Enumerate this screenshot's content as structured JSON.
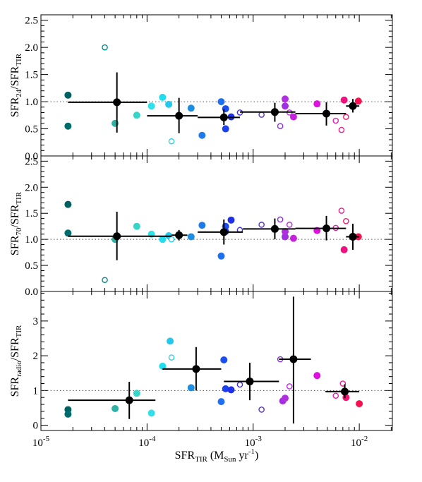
{
  "chart_data": [
    {
      "type": "scatter",
      "panel": "top",
      "ylabel": {
        "main": "SFR",
        "sub1": "24",
        "mid": "/SFR",
        "sub2": "TIR"
      },
      "ylim": [
        0,
        2.6
      ],
      "yticks": [
        "0.0",
        "0.5",
        "1.0",
        "1.5",
        "2.0",
        "2.5"
      ],
      "yticks_values": [
        0,
        0.5,
        1.0,
        1.5,
        2.0,
        2.5
      ],
      "reference_line": 1.0,
      "points": [
        {
          "x": 1.8e-05,
          "y": 1.12,
          "color": "#005f5f",
          "filled": true
        },
        {
          "x": 1.8e-05,
          "y": 0.55,
          "color": "#006b6b",
          "filled": true
        },
        {
          "x": 4e-05,
          "y": 2.0,
          "color": "#008b8b",
          "filled": false
        },
        {
          "x": 5e-05,
          "y": 0.6,
          "color": "#2bb3a8",
          "filled": true
        },
        {
          "x": 8e-05,
          "y": 0.75,
          "color": "#33d6c8",
          "filled": true
        },
        {
          "x": 0.00011,
          "y": 0.92,
          "color": "#33e0e8",
          "filled": true
        },
        {
          "x": 0.00014,
          "y": 1.08,
          "color": "#22ddee",
          "filled": true
        },
        {
          "x": 0.00016,
          "y": 0.95,
          "color": "#22c8ee",
          "filled": true
        },
        {
          "x": 0.00017,
          "y": 0.27,
          "color": "#33ccee",
          "filled": false
        },
        {
          "x": 0.00026,
          "y": 0.88,
          "color": "#1e8fe0",
          "filled": true
        },
        {
          "x": 0.00033,
          "y": 0.38,
          "color": "#1e7ae8",
          "filled": true
        },
        {
          "x": 0.0005,
          "y": 1.0,
          "color": "#1e70f0",
          "filled": true
        },
        {
          "x": 0.00055,
          "y": 0.87,
          "color": "#1a4ef0",
          "filled": true
        },
        {
          "x": 0.00055,
          "y": 0.5,
          "color": "#1a40f0",
          "filled": true
        },
        {
          "x": 0.00062,
          "y": 0.72,
          "color": "#2030e8",
          "filled": true
        },
        {
          "x": 0.00075,
          "y": 0.8,
          "color": "#4030d8",
          "filled": false
        },
        {
          "x": 0.0012,
          "y": 0.76,
          "color": "#5a30d8",
          "filled": false
        },
        {
          "x": 0.0018,
          "y": 0.55,
          "color": "#8a30e0",
          "filled": false
        },
        {
          "x": 0.002,
          "y": 0.92,
          "color": "#a030e0",
          "filled": true
        },
        {
          "x": 0.002,
          "y": 1.05,
          "color": "#b030e0",
          "filled": true
        },
        {
          "x": 0.0022,
          "y": 0.8,
          "color": "#c030e0",
          "filled": false
        },
        {
          "x": 0.0024,
          "y": 0.72,
          "color": "#c820e0",
          "filled": true
        },
        {
          "x": 0.004,
          "y": 0.96,
          "color": "#e010e0",
          "filled": true
        },
        {
          "x": 0.006,
          "y": 0.65,
          "color": "#e020b0",
          "filled": false
        },
        {
          "x": 0.0068,
          "y": 0.48,
          "color": "#e82090",
          "filled": false
        },
        {
          "x": 0.0072,
          "y": 1.03,
          "color": "#f01080",
          "filled": true
        },
        {
          "x": 0.0075,
          "y": 0.72,
          "color": "#f01870",
          "filled": false
        },
        {
          "x": 0.0098,
          "y": 1.01,
          "color": "#f81050",
          "filled": true
        }
      ],
      "binned": [
        {
          "x": 5.2e-05,
          "y": 0.99,
          "xlo": 1.8e-05,
          "xhi": 0.0001,
          "ylo": 0.43,
          "yhi": 1.54
        },
        {
          "x": 0.0002,
          "y": 0.74,
          "xlo": 0.0001,
          "xhi": 0.0003,
          "ylo": 0.42,
          "yhi": 1.07
        },
        {
          "x": 0.00053,
          "y": 0.71,
          "xlo": 0.0003,
          "xhi": 0.00075,
          "ylo": 0.57,
          "yhi": 0.86
        },
        {
          "x": 0.0016,
          "y": 0.81,
          "xlo": 0.00075,
          "xhi": 0.0025,
          "ylo": 0.63,
          "yhi": 0.98
        },
        {
          "x": 0.0049,
          "y": 0.78,
          "xlo": 0.0025,
          "xhi": 0.0075,
          "ylo": 0.56,
          "yhi": 0.99
        },
        {
          "x": 0.0087,
          "y": 0.92,
          "xlo": 0.0075,
          "xhi": 0.01,
          "ylo": 0.8,
          "yhi": 1.05
        }
      ]
    },
    {
      "type": "scatter",
      "panel": "middle",
      "ylabel": {
        "main": "SFR",
        "sub1": "70",
        "mid": "/SFR",
        "sub2": "TIR"
      },
      "ylim": [
        0,
        2.6
      ],
      "yticks": [
        "0.0",
        "0.5",
        "1.0",
        "1.5",
        "2.0",
        "2.5"
      ],
      "yticks_values": [
        0,
        0.5,
        1.0,
        1.5,
        2.0,
        2.5
      ],
      "reference_line": 1.0,
      "points": [
        {
          "x": 1.8e-05,
          "y": 1.67,
          "color": "#005f5f",
          "filled": true
        },
        {
          "x": 1.8e-05,
          "y": 1.12,
          "color": "#006b6b",
          "filled": true
        },
        {
          "x": 4e-05,
          "y": 0.22,
          "color": "#008b8b",
          "filled": false
        },
        {
          "x": 5e-05,
          "y": 1.0,
          "color": "#2bb3a8",
          "filled": true
        },
        {
          "x": 8e-05,
          "y": 1.25,
          "color": "#33d6c8",
          "filled": true
        },
        {
          "x": 0.00011,
          "y": 1.1,
          "color": "#33e0e8",
          "filled": true
        },
        {
          "x": 0.00014,
          "y": 1.0,
          "color": "#22ddee",
          "filled": true
        },
        {
          "x": 0.00016,
          "y": 1.07,
          "color": "#22c8ee",
          "filled": true
        },
        {
          "x": 0.00017,
          "y": 1.0,
          "color": "#33ccee",
          "filled": false
        },
        {
          "x": 0.00026,
          "y": 1.05,
          "color": "#1e8fe0",
          "filled": true
        },
        {
          "x": 0.00033,
          "y": 1.27,
          "color": "#1e7ae8",
          "filled": true
        },
        {
          "x": 0.0005,
          "y": 0.68,
          "color": "#1e70f0",
          "filled": true
        },
        {
          "x": 0.00055,
          "y": 1.25,
          "color": "#1a4ef0",
          "filled": true
        },
        {
          "x": 0.00055,
          "y": 1.15,
          "color": "#1a40f0",
          "filled": true
        },
        {
          "x": 0.00062,
          "y": 1.37,
          "color": "#2030e8",
          "filled": true
        },
        {
          "x": 0.00075,
          "y": 1.18,
          "color": "#4030d8",
          "filled": false
        },
        {
          "x": 0.0012,
          "y": 1.28,
          "color": "#5a30d8",
          "filled": false
        },
        {
          "x": 0.0018,
          "y": 1.38,
          "color": "#8a30e0",
          "filled": false
        },
        {
          "x": 0.002,
          "y": 1.05,
          "color": "#a030e0",
          "filled": true
        },
        {
          "x": 0.002,
          "y": 1.15,
          "color": "#b030e0",
          "filled": true
        },
        {
          "x": 0.0022,
          "y": 1.28,
          "color": "#c030e0",
          "filled": false
        },
        {
          "x": 0.0024,
          "y": 1.02,
          "color": "#c820e0",
          "filled": true
        },
        {
          "x": 0.004,
          "y": 1.17,
          "color": "#e010e0",
          "filled": true
        },
        {
          "x": 0.006,
          "y": 1.22,
          "color": "#e020b0",
          "filled": false
        },
        {
          "x": 0.0068,
          "y": 1.55,
          "color": "#e82090",
          "filled": false
        },
        {
          "x": 0.0072,
          "y": 0.8,
          "color": "#f01080",
          "filled": true
        },
        {
          "x": 0.0075,
          "y": 1.35,
          "color": "#f01870",
          "filled": false
        },
        {
          "x": 0.0098,
          "y": 1.05,
          "color": "#f81050",
          "filled": true
        }
      ],
      "binned": [
        {
          "x": 5.2e-05,
          "y": 1.06,
          "xlo": 1.8e-05,
          "xhi": 0.00017,
          "ylo": 0.6,
          "yhi": 1.53
        },
        {
          "x": 0.0002,
          "y": 1.08,
          "xlo": 0.00017,
          "xhi": 0.00024,
          "ylo": 0.98,
          "yhi": 1.18
        },
        {
          "x": 0.00053,
          "y": 1.14,
          "xlo": 0.0003,
          "xhi": 0.0008,
          "ylo": 0.9,
          "yhi": 1.38
        },
        {
          "x": 0.0016,
          "y": 1.2,
          "xlo": 0.0008,
          "xhi": 0.0025,
          "ylo": 1.0,
          "yhi": 1.4
        },
        {
          "x": 0.0049,
          "y": 1.21,
          "xlo": 0.0025,
          "xhi": 0.0075,
          "ylo": 0.98,
          "yhi": 1.45
        },
        {
          "x": 0.0087,
          "y": 1.05,
          "xlo": 0.0075,
          "xhi": 0.01,
          "ylo": 0.8,
          "yhi": 1.3
        }
      ]
    },
    {
      "type": "scatter",
      "panel": "bottom",
      "ylabel": {
        "main": "SFR",
        "sub1": "radio",
        "mid": "/SFR",
        "sub2": "TIR"
      },
      "xlabel": {
        "main": "SFR",
        "sub": "TIR",
        "rest_open": " (M",
        "unit_sub": "Sun",
        "rest_close": " yr",
        "sup": "-1",
        "end": ")"
      },
      "ylim": [
        -0.15,
        3.85
      ],
      "yticks": [
        "0",
        "1",
        "2",
        "3"
      ],
      "yticks_values": [
        0,
        1,
        2,
        3
      ],
      "reference_line": 1.0,
      "points": [
        {
          "x": 1.8e-05,
          "y": 0.45,
          "color": "#005f5f",
          "filled": true
        },
        {
          "x": 1.8e-05,
          "y": 0.32,
          "color": "#006b6b",
          "filled": true
        },
        {
          "x": 5e-05,
          "y": 0.48,
          "color": "#2bb3a8",
          "filled": true
        },
        {
          "x": 8e-05,
          "y": 0.92,
          "color": "#33d6c8",
          "filled": true
        },
        {
          "x": 0.00011,
          "y": 0.35,
          "color": "#33e0e8",
          "filled": true
        },
        {
          "x": 0.00014,
          "y": 1.7,
          "color": "#22ddee",
          "filled": true
        },
        {
          "x": 0.000165,
          "y": 2.42,
          "color": "#22c8ee",
          "filled": true
        },
        {
          "x": 0.00017,
          "y": 1.95,
          "color": "#33ccee",
          "filled": false
        },
        {
          "x": 0.00026,
          "y": 1.08,
          "color": "#1e8fe0",
          "filled": true
        },
        {
          "x": 0.0005,
          "y": 0.68,
          "color": "#1e70f0",
          "filled": true
        },
        {
          "x": 0.00053,
          "y": 1.88,
          "color": "#1a4ef0",
          "filled": true
        },
        {
          "x": 0.00055,
          "y": 1.05,
          "color": "#1a40f0",
          "filled": true
        },
        {
          "x": 0.00062,
          "y": 1.02,
          "color": "#2030e8",
          "filled": true
        },
        {
          "x": 0.00075,
          "y": 1.17,
          "color": "#4030d8",
          "filled": false
        },
        {
          "x": 0.0012,
          "y": 0.45,
          "color": "#5a30d8",
          "filled": false
        },
        {
          "x": 0.0018,
          "y": 1.9,
          "color": "#8a30e0",
          "filled": false
        },
        {
          "x": 0.0019,
          "y": 0.7,
          "color": "#a030e0",
          "filled": true
        },
        {
          "x": 0.002,
          "y": 0.78,
          "color": "#b030e0",
          "filled": true
        },
        {
          "x": 0.0022,
          "y": 1.12,
          "color": "#c030e0",
          "filled": false
        },
        {
          "x": 0.004,
          "y": 1.43,
          "color": "#e010e0",
          "filled": true
        },
        {
          "x": 0.006,
          "y": 0.85,
          "color": "#e020b0",
          "filled": false
        },
        {
          "x": 0.007,
          "y": 1.2,
          "color": "#e82090",
          "filled": false
        },
        {
          "x": 0.0075,
          "y": 0.8,
          "color": "#f01870",
          "filled": true
        },
        {
          "x": 0.01,
          "y": 0.62,
          "color": "#f81050",
          "filled": true
        }
      ],
      "binned": [
        {
          "x": 6.8e-05,
          "y": 0.72,
          "xlo": 1.8e-05,
          "xhi": 0.00012,
          "ylo": 0.18,
          "yhi": 1.25
        },
        {
          "x": 0.00029,
          "y": 1.62,
          "xlo": 0.00014,
          "xhi": 0.0005,
          "ylo": 1.0,
          "yhi": 2.25
        },
        {
          "x": 0.00093,
          "y": 1.26,
          "xlo": 0.00053,
          "xhi": 0.00175,
          "ylo": 0.72,
          "yhi": 1.8
        },
        {
          "x": 0.0024,
          "y": 1.9,
          "xlo": 0.00175,
          "xhi": 0.0035,
          "ylo": 0.05,
          "yhi": 3.7
        },
        {
          "x": 0.0073,
          "y": 0.97,
          "xlo": 0.0048,
          "xhi": 0.01,
          "ylo": 0.78,
          "yhi": 1.18
        }
      ]
    }
  ],
  "xaxis": {
    "scale": "log",
    "xlim": [
      1e-05,
      0.0205
    ],
    "major_ticks": [
      {
        "value": 1e-05,
        "base": "10",
        "exp": "-5"
      },
      {
        "value": 0.0001,
        "base": "10",
        "exp": "-4"
      },
      {
        "value": 0.001,
        "base": "10",
        "exp": "-3"
      },
      {
        "value": 0.01,
        "base": "10",
        "exp": "-2"
      }
    ]
  }
}
